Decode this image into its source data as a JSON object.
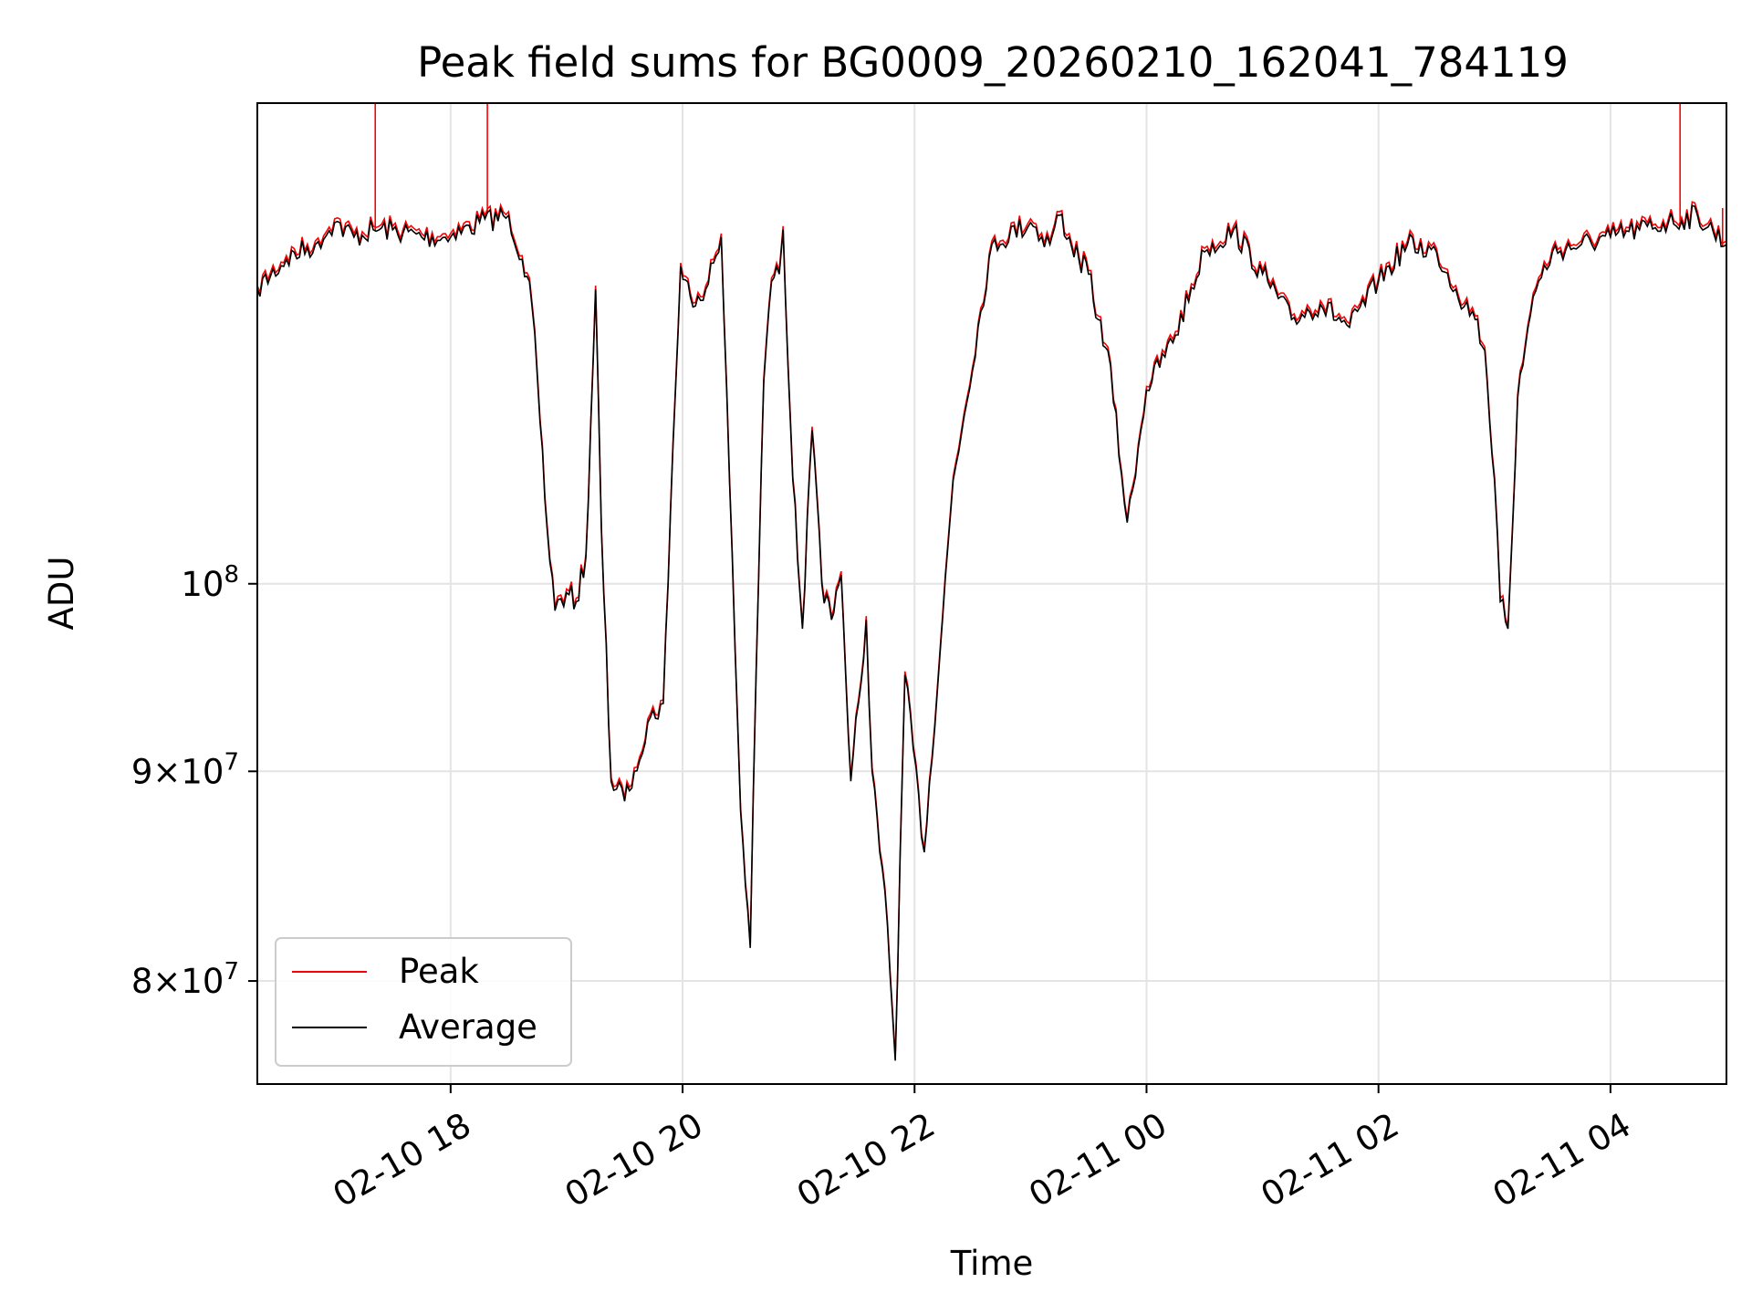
{
  "chart_data": {
    "type": "line",
    "title": "Peak field sums for BG0009_20260210_162041_784119",
    "xlabel": "Time",
    "ylabel": "ADU",
    "yscale": "log",
    "xlim": [
      "2026-02-10 16:20",
      "2026-02-11 05:00"
    ],
    "ylim": [
      75500000,
      131000000
    ],
    "grid": true,
    "legend": "lower-left",
    "xticks": [
      {
        "t": "2026-02-10 18:00",
        "label": "02-10 18"
      },
      {
        "t": "2026-02-10 20:00",
        "label": "02-10 20"
      },
      {
        "t": "2026-02-10 22:00",
        "label": "02-10 22"
      },
      {
        "t": "2026-02-11 00:00",
        "label": "02-11 00"
      },
      {
        "t": "2026-02-11 02:00",
        "label": "02-11 02"
      },
      {
        "t": "2026-02-11 04:00",
        "label": "02-11 04"
      }
    ],
    "yticks": [
      {
        "value": 80000000,
        "base": "8",
        "exp": "7"
      },
      {
        "value": 90000000,
        "base": "9",
        "exp": "7"
      },
      {
        "value": 100000000,
        "base": "",
        "exp": "8"
      }
    ],
    "series": [
      {
        "name": "Peak",
        "color": "#ff0000",
        "spikes": [
          {
            "t": "2026-02-10 17:21",
            "y": 131000000
          },
          {
            "t": "2026-02-10 18:19",
            "y": 131000000
          },
          {
            "t": "2026-02-11 04:36",
            "y": 131000000
          },
          {
            "t": "2026-02-11 04:58",
            "y": 123500000
          }
        ]
      },
      {
        "name": "Average",
        "color": "#000000",
        "x": [
          "2026-02-10 16:20",
          "2026-02-10 16:35",
          "2026-02-10 16:50",
          "2026-02-10 17:00",
          "2026-02-10 17:10",
          "2026-02-10 17:20",
          "2026-02-10 17:30",
          "2026-02-10 17:45",
          "2026-02-10 18:00",
          "2026-02-10 18:15",
          "2026-02-10 18:30",
          "2026-02-10 18:37",
          "2026-02-10 18:42",
          "2026-02-10 18:45",
          "2026-02-10 18:50",
          "2026-02-10 18:54",
          "2026-02-10 19:00",
          "2026-02-10 19:05",
          "2026-02-10 19:10",
          "2026-02-10 19:15",
          "2026-02-10 19:18",
          "2026-02-10 19:23",
          "2026-02-10 19:30",
          "2026-02-10 19:35",
          "2026-02-10 19:42",
          "2026-02-10 19:50",
          "2026-02-10 19:55",
          "2026-02-10 19:59",
          "2026-02-10 20:04",
          "2026-02-10 20:12",
          "2026-02-10 20:20",
          "2026-02-10 20:30",
          "2026-02-10 20:35",
          "2026-02-10 20:38",
          "2026-02-10 20:42",
          "2026-02-10 20:46",
          "2026-02-10 20:50",
          "2026-02-10 20:52",
          "2026-02-10 20:57",
          "2026-02-10 21:02",
          "2026-02-10 21:07",
          "2026-02-10 21:12",
          "2026-02-10 21:17",
          "2026-02-10 21:22",
          "2026-02-10 21:27",
          "2026-02-10 21:31",
          "2026-02-10 21:35",
          "2026-02-10 21:38",
          "2026-02-10 21:42",
          "2026-02-10 21:46",
          "2026-02-10 21:50",
          "2026-02-10 21:55",
          "2026-02-10 22:05",
          "2026-02-10 22:20",
          "2026-02-10 22:40",
          "2026-02-10 23:00",
          "2026-02-10 23:10",
          "2026-02-10 23:15",
          "2026-02-10 23:20",
          "2026-02-10 23:25",
          "2026-02-10 23:30",
          "2026-02-10 23:35",
          "2026-02-10 23:40",
          "2026-02-10 23:50",
          "2026-02-11 00:00",
          "2026-02-11 00:15",
          "2026-02-11 00:30",
          "2026-02-11 00:45",
          "2026-02-11 01:00",
          "2026-02-11 01:15",
          "2026-02-11 01:30",
          "2026-02-11 01:45",
          "2026-02-11 02:00",
          "2026-02-11 02:15",
          "2026-02-11 02:30",
          "2026-02-11 02:40",
          "2026-02-11 02:50",
          "2026-02-11 02:55",
          "2026-02-11 03:00",
          "2026-02-11 03:03",
          "2026-02-11 03:07",
          "2026-02-11 03:12",
          "2026-02-11 03:20",
          "2026-02-11 03:30",
          "2026-02-11 03:45",
          "2026-02-11 04:00",
          "2026-02-11 04:15",
          "2026-02-11 04:30",
          "2026-02-11 04:45",
          "2026-02-11 05:00"
        ],
        "y": [
          118000000,
          120000000,
          121000000,
          122500000,
          121500000,
          122000000,
          122000000,
          121500000,
          121500000,
          122500000,
          123000000,
          120000000,
          117000000,
          112000000,
          103000000,
          98500000,
          99500000,
          99000000,
          101500000,
          118000000,
          103000000,
          89500000,
          88500000,
          90000000,
          92500000,
          93500000,
          108000000,
          119500000,
          117500000,
          118000000,
          121500000,
          88000000,
          81500000,
          95000000,
          112000000,
          118500000,
          119000000,
          122000000,
          106000000,
          97500000,
          109000000,
          100000000,
          98000000,
          100500000,
          89500000,
          93500000,
          98000000,
          90000000,
          86000000,
          82500000,
          76500000,
          95000000,
          86000000,
          106000000,
          121000000,
          122500000,
          121000000,
          123000000,
          121500000,
          120000000,
          119000000,
          116000000,
          114000000,
          103500000,
          111500000,
          115000000,
          120500000,
          122000000,
          119000000,
          116000000,
          117000000,
          115500000,
          118500000,
          121000000,
          120500000,
          118000000,
          116000000,
          114000000,
          106000000,
          99000000,
          97500000,
          111000000,
          117500000,
          120500000,
          121000000,
          121500000,
          122000000,
          122500000,
          123000000,
          121000000
        ]
      }
    ]
  }
}
